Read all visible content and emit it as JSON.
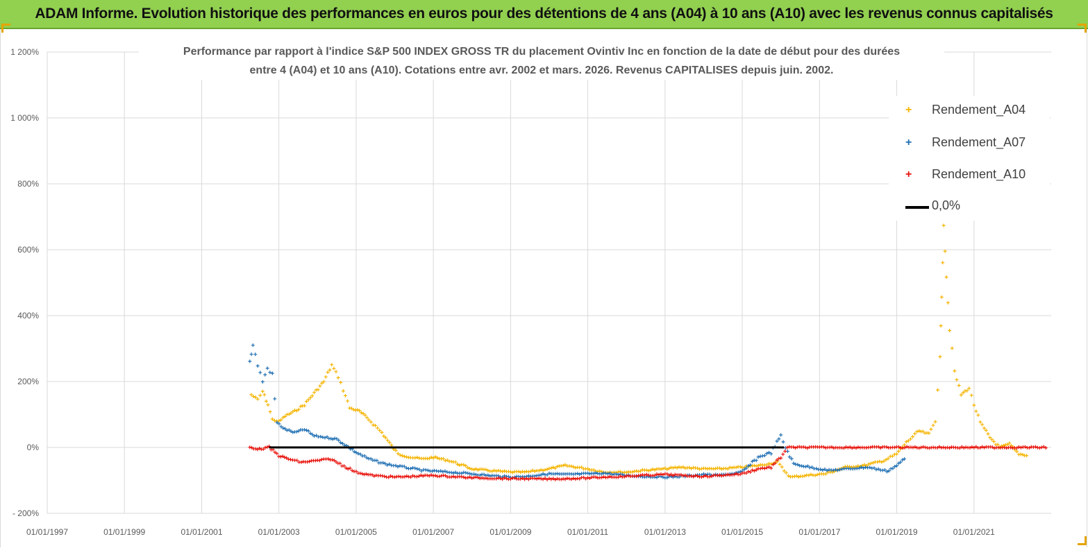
{
  "header": {
    "title": "ADAM Informe. Evolution historique des performances en euros pour des détentions de 4 ans (A04) à 10 ans (A10) avec les revenus connus capitalisés"
  },
  "colors": {
    "header_bg": "#92d050",
    "a04": "#f4b400",
    "a07": "#1f6fb3",
    "a10": "#e8130c",
    "zero_line": "#000000",
    "grid": "#d9d9d9"
  },
  "chart_data": {
    "type": "scatter",
    "title_line1": "Performance par rapport à l'indice S&P 500 INDEX GROSS TR  du placement Ovintiv Inc en fonction de la date de début pour des durées",
    "title_line2": "entre 4 (A04) et 10 ans (A10). Cotations entre avr. 2002 et mars. 2026. Revenus CAPITALISES depuis juin. 2002.",
    "xlabel": "",
    "ylabel": "",
    "x_range": [
      "1997-01-01",
      "2023-01-01"
    ],
    "x_tick_labels": [
      "01/01/1997",
      "01/01/1999",
      "01/01/2001",
      "01/01/2003",
      "01/01/2005",
      "01/01/2007",
      "01/01/2009",
      "01/01/2011",
      "01/01/2013",
      "01/01/2015",
      "01/01/2017",
      "01/01/2019",
      "01/01/2021"
    ],
    "y_range": [
      -200,
      1200
    ],
    "y_ticks": [
      -200,
      0,
      200,
      400,
      600,
      800,
      1000,
      1200
    ],
    "y_tick_labels": [
      "- 200%",
      "0%",
      "200%",
      "400%",
      "600%",
      "800%",
      "1 000%",
      "1 200%"
    ],
    "grid": true,
    "legend_position": "top-right",
    "series": [
      {
        "name": "Rendement_A04",
        "marker": "+",
        "points": [
          [
            "2002-04-15",
            160
          ],
          [
            "2002-06-15",
            145
          ],
          [
            "2002-08-01",
            170
          ],
          [
            "2002-09-20",
            130
          ],
          [
            "2002-11-01",
            85
          ],
          [
            "2003-01-01",
            78
          ],
          [
            "2003-03-01",
            95
          ],
          [
            "2003-06-01",
            110
          ],
          [
            "2003-09-01",
            130
          ],
          [
            "2003-12-01",
            165
          ],
          [
            "2004-03-01",
            200
          ],
          [
            "2004-05-15",
            250
          ],
          [
            "2004-07-15",
            215
          ],
          [
            "2004-09-01",
            175
          ],
          [
            "2004-11-01",
            120
          ],
          [
            "2005-02-01",
            110
          ],
          [
            "2005-05-01",
            85
          ],
          [
            "2005-09-01",
            45
          ],
          [
            "2005-12-01",
            5
          ],
          [
            "2006-02-01",
            -20
          ],
          [
            "2006-06-01",
            -30
          ],
          [
            "2006-10-01",
            -35
          ],
          [
            "2007-01-01",
            -30
          ],
          [
            "2007-06-01",
            -40
          ],
          [
            "2008-01-01",
            -65
          ],
          [
            "2008-06-01",
            -70
          ],
          [
            "2009-01-01",
            -75
          ],
          [
            "2009-06-01",
            -75
          ],
          [
            "2010-01-01",
            -65
          ],
          [
            "2010-06-01",
            -55
          ],
          [
            "2011-01-01",
            -65
          ],
          [
            "2011-06-01",
            -75
          ],
          [
            "2012-01-01",
            -75
          ],
          [
            "2012-06-01",
            -70
          ],
          [
            "2013-01-01",
            -65
          ],
          [
            "2013-06-01",
            -60
          ],
          [
            "2014-01-01",
            -65
          ],
          [
            "2014-06-01",
            -65
          ],
          [
            "2015-01-01",
            -60
          ],
          [
            "2015-06-01",
            -55
          ],
          [
            "2015-12-01",
            -45
          ],
          [
            "2016-02-01",
            -70
          ],
          [
            "2016-04-01",
            -90
          ],
          [
            "2016-09-01",
            -85
          ],
          [
            "2017-03-01",
            -80
          ],
          [
            "2017-09-01",
            -60
          ],
          [
            "2018-03-01",
            -55
          ],
          [
            "2018-09-01",
            -40
          ],
          [
            "2019-01-01",
            -20
          ],
          [
            "2019-04-01",
            15
          ],
          [
            "2019-08-01",
            50
          ],
          [
            "2019-11-01",
            40
          ],
          [
            "2020-01-01",
            80
          ],
          [
            "2020-02-15",
            280
          ],
          [
            "2020-03-01",
            450
          ],
          [
            "2020-03-20",
            680
          ],
          [
            "2020-04-15",
            520
          ],
          [
            "2020-05-15",
            360
          ],
          [
            "2020-07-01",
            230
          ],
          [
            "2020-09-01",
            160
          ],
          [
            "2020-11-15",
            180
          ],
          [
            "2021-01-01",
            130
          ],
          [
            "2021-03-01",
            75
          ],
          [
            "2021-06-01",
            30
          ],
          [
            "2021-09-01",
            0
          ],
          [
            "2021-12-01",
            10
          ],
          [
            "2022-03-01",
            -20
          ],
          [
            "2022-06-01",
            -25
          ]
        ]
      },
      {
        "name": "Rendement_A07",
        "marker": "+",
        "points": [
          [
            "2002-04-01",
            260
          ],
          [
            "2002-05-01",
            310
          ],
          [
            "2002-06-15",
            250
          ],
          [
            "2002-08-01",
            200
          ],
          [
            "2002-09-15",
            240
          ],
          [
            "2002-11-01",
            220
          ],
          [
            "2002-12-15",
            75
          ],
          [
            "2003-03-01",
            55
          ],
          [
            "2003-06-01",
            45
          ],
          [
            "2003-09-01",
            55
          ],
          [
            "2003-12-01",
            35
          ],
          [
            "2004-04-01",
            30
          ],
          [
            "2004-07-01",
            25
          ],
          [
            "2004-10-01",
            5
          ],
          [
            "2005-01-01",
            -15
          ],
          [
            "2005-05-01",
            -35
          ],
          [
            "2005-10-01",
            -50
          ],
          [
            "2006-04-01",
            -60
          ],
          [
            "2006-10-01",
            -70
          ],
          [
            "2007-06-01",
            -75
          ],
          [
            "2008-01-01",
            -80
          ],
          [
            "2008-06-01",
            -85
          ],
          [
            "2009-01-01",
            -90
          ],
          [
            "2009-06-01",
            -88
          ],
          [
            "2010-01-01",
            -80
          ],
          [
            "2010-06-01",
            -82
          ],
          [
            "2011-01-01",
            -80
          ],
          [
            "2011-06-01",
            -78
          ],
          [
            "2012-01-01",
            -85
          ],
          [
            "2012-06-01",
            -88
          ],
          [
            "2013-01-01",
            -90
          ],
          [
            "2013-06-01",
            -88
          ],
          [
            "2014-01-01",
            -82
          ],
          [
            "2014-06-01",
            -85
          ],
          [
            "2015-01-01",
            -75
          ],
          [
            "2015-06-01",
            -30
          ],
          [
            "2015-10-01",
            -15
          ],
          [
            "2016-01-01",
            35
          ],
          [
            "2016-02-15",
            0
          ],
          [
            "2016-05-01",
            -50
          ],
          [
            "2016-10-01",
            -60
          ],
          [
            "2017-04-01",
            -70
          ],
          [
            "2017-10-01",
            -65
          ],
          [
            "2018-04-01",
            -60
          ],
          [
            "2018-10-01",
            -72
          ],
          [
            "2019-01-01",
            -55
          ],
          [
            "2019-04-01",
            -30
          ]
        ]
      },
      {
        "name": "Rendement_A10",
        "marker": "+",
        "points": [
          [
            "2002-04-01",
            0
          ],
          [
            "2002-07-01",
            -5
          ],
          [
            "2002-10-01",
            0
          ],
          [
            "2003-01-01",
            -25
          ],
          [
            "2003-04-01",
            -35
          ],
          [
            "2003-08-01",
            -45
          ],
          [
            "2004-01-01",
            -40
          ],
          [
            "2004-05-01",
            -35
          ],
          [
            "2004-08-01",
            -50
          ],
          [
            "2005-01-01",
            -75
          ],
          [
            "2005-06-01",
            -85
          ],
          [
            "2006-01-01",
            -90
          ],
          [
            "2006-06-01",
            -88
          ],
          [
            "2007-01-01",
            -85
          ],
          [
            "2007-06-01",
            -88
          ],
          [
            "2008-01-01",
            -92
          ],
          [
            "2008-06-01",
            -93
          ],
          [
            "2009-01-01",
            -95
          ],
          [
            "2009-06-01",
            -95
          ],
          [
            "2010-01-01",
            -96
          ],
          [
            "2010-06-01",
            -95
          ],
          [
            "2011-01-01",
            -93
          ],
          [
            "2011-06-01",
            -90
          ],
          [
            "2012-01-01",
            -88
          ],
          [
            "2012-06-01",
            -85
          ],
          [
            "2013-01-01",
            -82
          ],
          [
            "2013-06-01",
            -85
          ],
          [
            "2014-01-01",
            -88
          ],
          [
            "2014-06-01",
            -85
          ],
          [
            "2015-01-01",
            -80
          ],
          [
            "2015-06-01",
            -65
          ],
          [
            "2015-10-01",
            -60
          ],
          [
            "2016-01-01",
            -30
          ],
          [
            "2016-03-01",
            0
          ],
          [
            "2017-01-01",
            0
          ],
          [
            "2018-01-01",
            0
          ],
          [
            "2019-01-01",
            0
          ],
          [
            "2020-01-01",
            0
          ],
          [
            "2021-01-01",
            0
          ],
          [
            "2022-01-01",
            0
          ],
          [
            "2022-12-01",
            0
          ]
        ]
      },
      {
        "name": "0,0%",
        "style": "line",
        "points": [
          [
            "2002-10-01",
            0
          ],
          [
            "2016-02-01",
            0
          ]
        ]
      }
    ]
  },
  "legend": {
    "items": [
      {
        "label": "Rendement_A04",
        "symbol": "+"
      },
      {
        "label": "Rendement_A07",
        "symbol": "+"
      },
      {
        "label": "Rendement_A10",
        "symbol": "+"
      },
      {
        "label": "0,0%",
        "symbol": ""
      }
    ]
  }
}
